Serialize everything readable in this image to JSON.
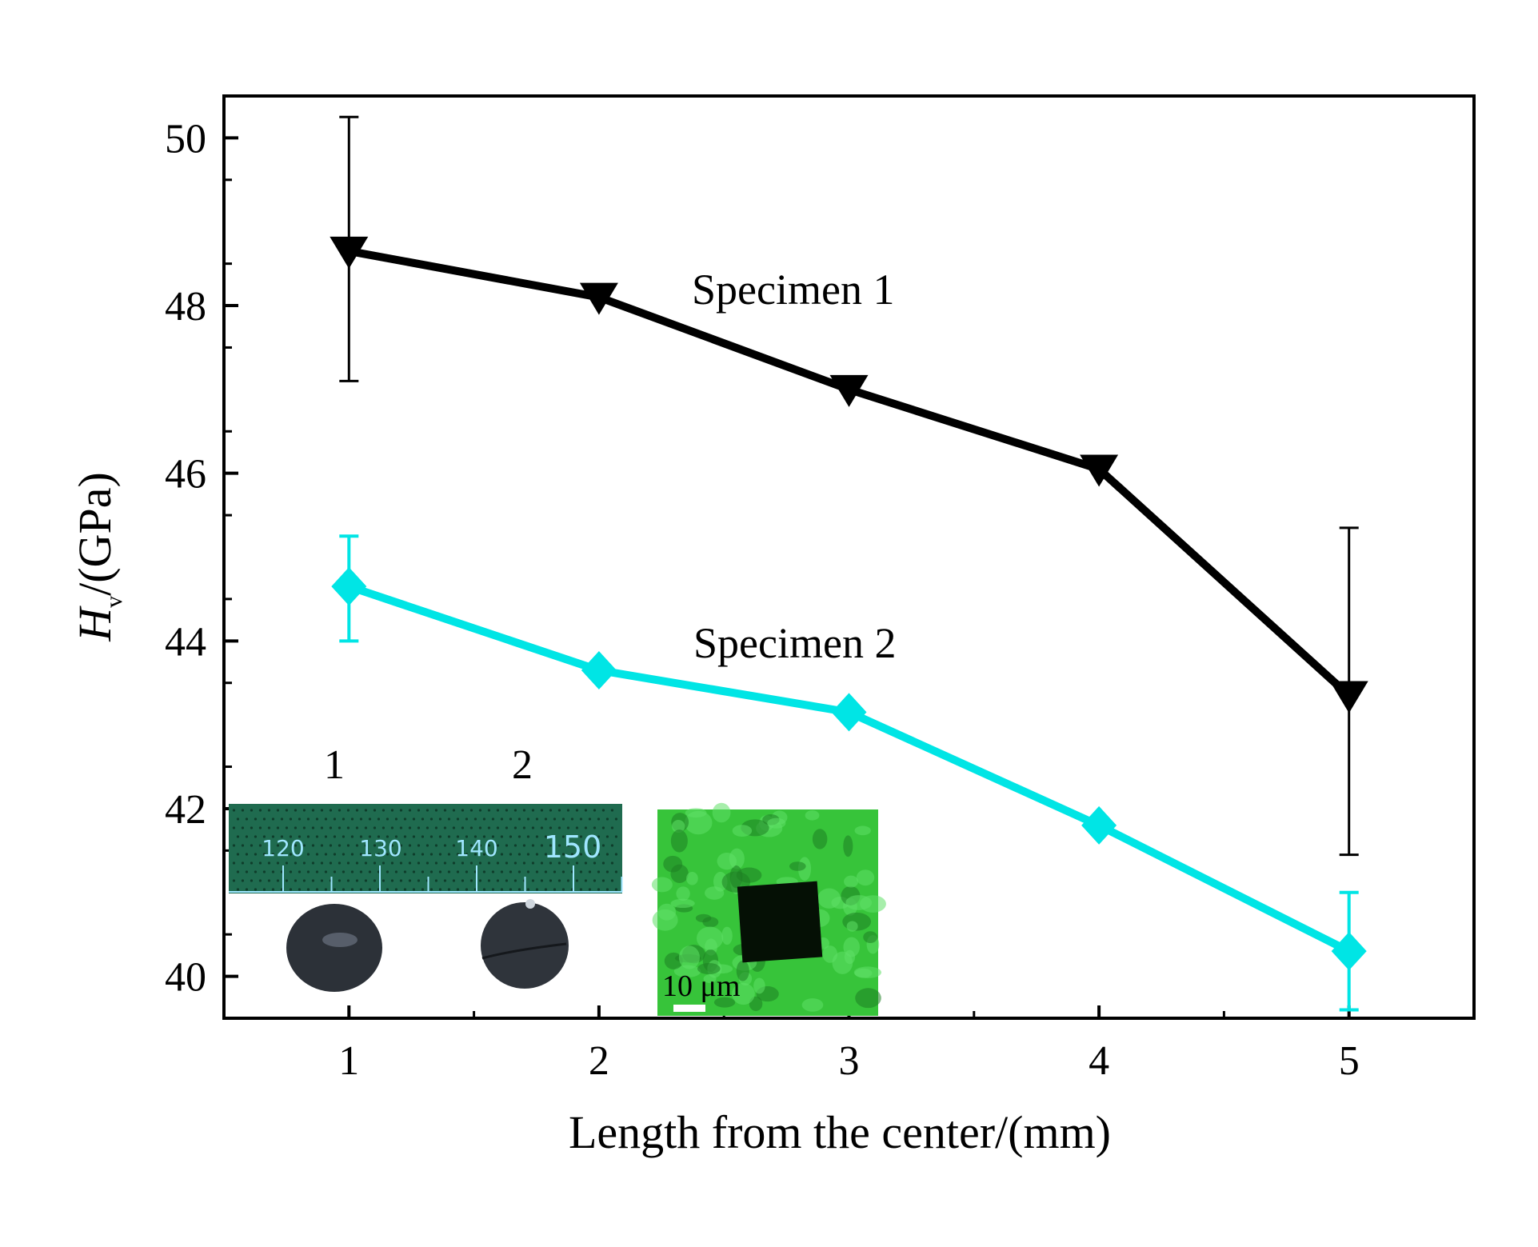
{
  "chart_data": {
    "type": "line",
    "xlabel": "Length from the center/(mm)",
    "ylabel_main": "H",
    "ylabel_sub": "v",
    "ylabel_unit": "/(GPa)",
    "xlim": [
      0.5,
      5.5
    ],
    "ylim": [
      39.5,
      50.5
    ],
    "xticks": [
      1,
      2,
      3,
      4,
      5
    ],
    "yticks": [
      40,
      42,
      44,
      46,
      48,
      50
    ],
    "x": [
      1,
      2,
      3,
      4,
      5
    ],
    "series": [
      {
        "name": "Specimen 1",
        "label": "Specimen 1",
        "color": "#000000",
        "marker": "triangle-down",
        "values": [
          48.65,
          48.1,
          47.0,
          46.05,
          43.35
        ],
        "error_bars": [
          {
            "index": 0,
            "low": 47.1,
            "high": 50.25
          },
          {
            "index": 4,
            "low": 41.45,
            "high": 45.35
          }
        ]
      },
      {
        "name": "Specimen 2",
        "label": "Specimen 2",
        "color": "#00e5e5",
        "marker": "diamond",
        "values": [
          44.65,
          43.65,
          43.15,
          41.8,
          40.3
        ],
        "error_bars": [
          {
            "index": 0,
            "low": 44.0,
            "high": 45.25
          },
          {
            "index": 4,
            "low": 39.6,
            "high": 41.0
          }
        ]
      }
    ]
  },
  "inset_photo": {
    "sample_labels": [
      "1",
      "2"
    ],
    "ruler_ticks": [
      "120",
      "130",
      "140",
      "150"
    ],
    "ruler_color": "#1f6b4f",
    "ruler_text_color": "#9fe6ff"
  },
  "inset_micrograph": {
    "scale_label": "10 μm",
    "color": "#37c43a"
  }
}
